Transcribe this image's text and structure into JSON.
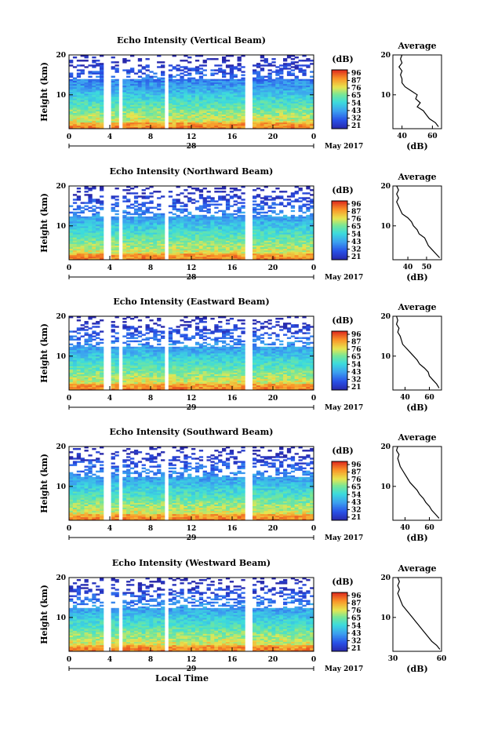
{
  "chart_data": [
    {
      "type": "heatmap",
      "title": "Echo Intensity (Vertical Beam)",
      "ylabel": "Height (km)",
      "xticks": [
        "0",
        "4",
        "8",
        "12",
        "16",
        "20",
        "0"
      ],
      "yticks": [
        "10",
        "20"
      ],
      "xlim": [
        0,
        24
      ],
      "ylim": [
        1.5,
        20
      ],
      "date_label": "28",
      "month_label": "May 2017",
      "colorbar": {
        "unit": "(dB)",
        "ticks": [
          "96",
          "87",
          "76",
          "65",
          "54",
          "43",
          "32",
          "21"
        ]
      },
      "average": {
        "title": "Average",
        "xlabel": "(dB)",
        "xticks": [
          "40",
          "60"
        ],
        "yticks": [
          "10",
          "20"
        ],
        "xlim": [
          34,
          66
        ],
        "profile": [
          [
            2,
            64
          ],
          [
            3,
            62
          ],
          [
            4,
            58
          ],
          [
            5,
            56
          ],
          [
            6,
            54
          ],
          [
            7,
            50
          ],
          [
            8,
            52
          ],
          [
            9,
            49
          ],
          [
            10,
            50
          ],
          [
            11,
            46
          ],
          [
            12,
            42
          ],
          [
            13,
            40
          ],
          [
            14,
            40
          ],
          [
            15,
            39
          ],
          [
            16,
            40
          ],
          [
            17,
            38
          ],
          [
            18,
            40
          ],
          [
            19,
            39
          ],
          [
            20,
            40
          ]
        ]
      }
    },
    {
      "type": "heatmap",
      "title": "Echo Intensity (Northward Beam)",
      "ylabel": "Height (km)",
      "xticks": [
        "0",
        "4",
        "8",
        "12",
        "16",
        "20",
        "0"
      ],
      "yticks": [
        "10",
        "20"
      ],
      "xlim": [
        0,
        24
      ],
      "ylim": [
        1.5,
        20
      ],
      "date_label": "28",
      "month_label": "May 2017",
      "colorbar": {
        "unit": "(dB)",
        "ticks": [
          "96",
          "87",
          "76",
          "65",
          "54",
          "43",
          "32",
          "21"
        ]
      },
      "average": {
        "title": "Average",
        "xlabel": "(dB)",
        "xticks": [
          "40",
          "50"
        ],
        "yticks": [
          "10",
          "20"
        ],
        "xlim": [
          32,
          58
        ],
        "profile": [
          [
            2,
            57
          ],
          [
            3,
            55
          ],
          [
            4,
            53
          ],
          [
            5,
            51
          ],
          [
            6,
            50
          ],
          [
            7,
            49
          ],
          [
            8,
            46
          ],
          [
            9,
            45
          ],
          [
            10,
            43
          ],
          [
            11,
            42
          ],
          [
            12,
            40
          ],
          [
            13,
            37
          ],
          [
            14,
            36
          ],
          [
            15,
            35
          ],
          [
            16,
            34
          ],
          [
            17,
            35
          ],
          [
            18,
            34
          ],
          [
            19,
            35
          ],
          [
            20,
            34
          ]
        ]
      }
    },
    {
      "type": "heatmap",
      "title": "Echo Intensity (Eastward Beam)",
      "ylabel": "Height (km)",
      "xticks": [
        "0",
        "4",
        "8",
        "12",
        "16",
        "20",
        "0"
      ],
      "yticks": [
        "10",
        "20"
      ],
      "xlim": [
        0,
        24
      ],
      "ylim": [
        1.5,
        20
      ],
      "date_label": "29",
      "month_label": "May 2017",
      "colorbar": {
        "unit": "(dB)",
        "ticks": [
          "96",
          "87",
          "76",
          "65",
          "54",
          "43",
          "32",
          "21"
        ]
      },
      "average": {
        "title": "Average",
        "xlabel": "(dB)",
        "xticks": [
          "40",
          "60"
        ],
        "yticks": [
          "10",
          "20"
        ],
        "xlim": [
          30,
          70
        ],
        "profile": [
          [
            2,
            68
          ],
          [
            3,
            66
          ],
          [
            4,
            63
          ],
          [
            5,
            60
          ],
          [
            6,
            59
          ],
          [
            7,
            56
          ],
          [
            8,
            52
          ],
          [
            9,
            50
          ],
          [
            10,
            47
          ],
          [
            11,
            44
          ],
          [
            12,
            41
          ],
          [
            13,
            38
          ],
          [
            14,
            37
          ],
          [
            15,
            36
          ],
          [
            16,
            34
          ],
          [
            17,
            35
          ],
          [
            18,
            33
          ],
          [
            19,
            34
          ],
          [
            20,
            33
          ]
        ]
      }
    },
    {
      "type": "heatmap",
      "title": "Echo Intensity (Southward Beam)",
      "ylabel": "Height (km)",
      "xticks": [
        "0",
        "4",
        "8",
        "12",
        "16",
        "20",
        "0"
      ],
      "yticks": [
        "10",
        "20"
      ],
      "xlim": [
        0,
        24
      ],
      "ylim": [
        1.5,
        20
      ],
      "date_label": "29",
      "month_label": "May 2017",
      "colorbar": {
        "unit": "(dB)",
        "ticks": [
          "96",
          "87",
          "76",
          "65",
          "54",
          "43",
          "32",
          "21"
        ]
      },
      "average": {
        "title": "Average",
        "xlabel": "(dB)",
        "xticks": [
          "40",
          "60"
        ],
        "yticks": [
          "10",
          "20"
        ],
        "xlim": [
          30,
          70
        ],
        "profile": [
          [
            2,
            68
          ],
          [
            3,
            65
          ],
          [
            4,
            62
          ],
          [
            5,
            60
          ],
          [
            6,
            57
          ],
          [
            7,
            55
          ],
          [
            8,
            52
          ],
          [
            9,
            50
          ],
          [
            10,
            47
          ],
          [
            11,
            44
          ],
          [
            12,
            42
          ],
          [
            13,
            40
          ],
          [
            14,
            38
          ],
          [
            15,
            36
          ],
          [
            16,
            35
          ],
          [
            17,
            34
          ],
          [
            18,
            35
          ],
          [
            19,
            33
          ],
          [
            20,
            34
          ]
        ]
      }
    },
    {
      "type": "heatmap",
      "title": "Echo Intensity (Westward Beam)",
      "ylabel": "Height (km)",
      "xticks": [
        "0",
        "4",
        "8",
        "12",
        "16",
        "20",
        "0"
      ],
      "yticks": [
        "10",
        "20"
      ],
      "xlim": [
        0,
        24
      ],
      "ylim": [
        1.5,
        20
      ],
      "date_label": "29",
      "month_label": "May 2017",
      "xlabel": "Local Time",
      "colorbar": {
        "unit": "(dB)",
        "ticks": [
          "96",
          "87",
          "76",
          "65",
          "54",
          "43",
          "32",
          "21"
        ]
      },
      "average": {
        "title": "Average",
        "xlabel": "(dB)",
        "xticks": [
          "30",
          "60"
        ],
        "yticks": [
          "10",
          "20"
        ],
        "xlim": [
          30,
          60
        ],
        "profile": [
          [
            2,
            59
          ],
          [
            3,
            57
          ],
          [
            4,
            54
          ],
          [
            5,
            52
          ],
          [
            6,
            50
          ],
          [
            7,
            48
          ],
          [
            8,
            46
          ],
          [
            9,
            44
          ],
          [
            10,
            42
          ],
          [
            11,
            40
          ],
          [
            12,
            38
          ],
          [
            13,
            36
          ],
          [
            14,
            35
          ],
          [
            15,
            34
          ],
          [
            16,
            33
          ],
          [
            17,
            34
          ],
          [
            18,
            33
          ],
          [
            19,
            34
          ],
          [
            20,
            33
          ]
        ]
      }
    }
  ]
}
